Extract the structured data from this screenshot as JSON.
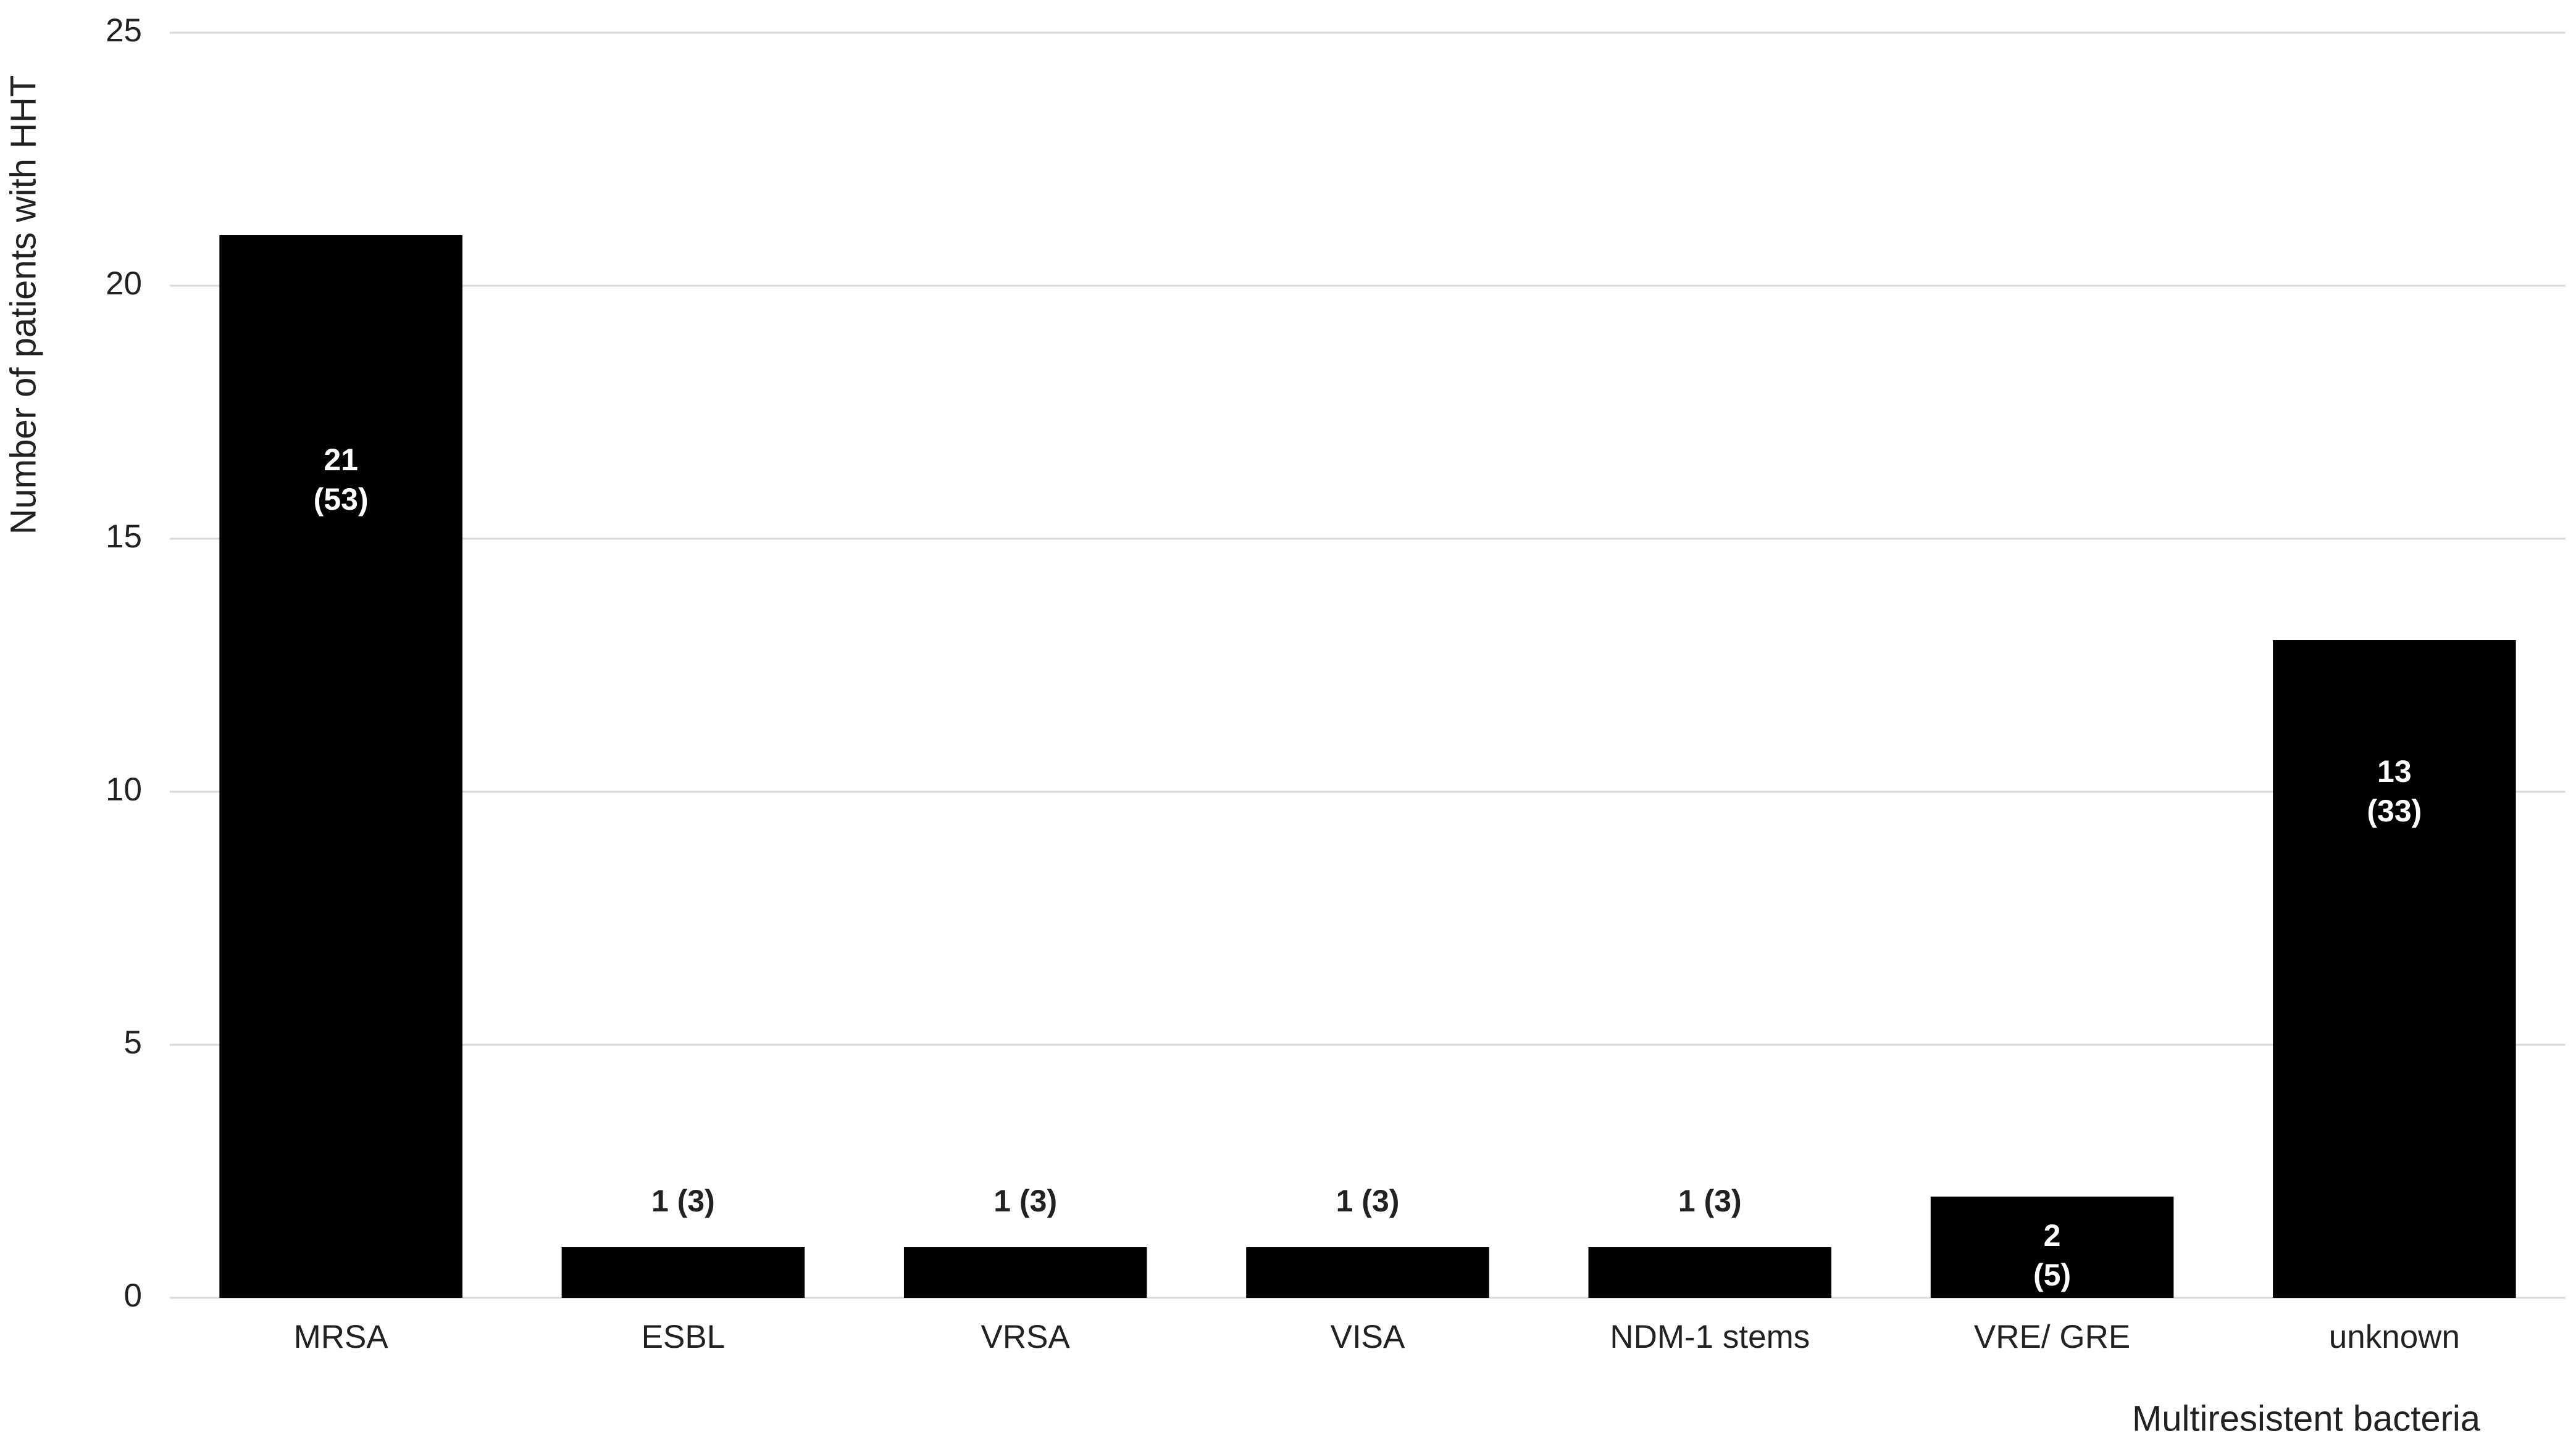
{
  "chart_data": {
    "type": "bar",
    "x_label": "Multiresistent bacteria",
    "y_label": "Number of patients with HHT",
    "categories": [
      "MRSA",
      "ESBL",
      "VRSA",
      "VISA",
      "NDM-1 stems",
      "VRE/ GRE",
      "unknown"
    ],
    "values": [
      21,
      1,
      1,
      1,
      1,
      2,
      13
    ],
    "value_labels": [
      "21\n(53)",
      "1 (3)",
      "1 (3)",
      "1 (3)",
      "1 (3)",
      "2\n(5)",
      "13\n(33)"
    ],
    "color": "#000000",
    "ylim": [
      0,
      25
    ],
    "yticks": [
      0,
      5,
      10,
      15,
      20,
      25
    ],
    "grid": true
  }
}
